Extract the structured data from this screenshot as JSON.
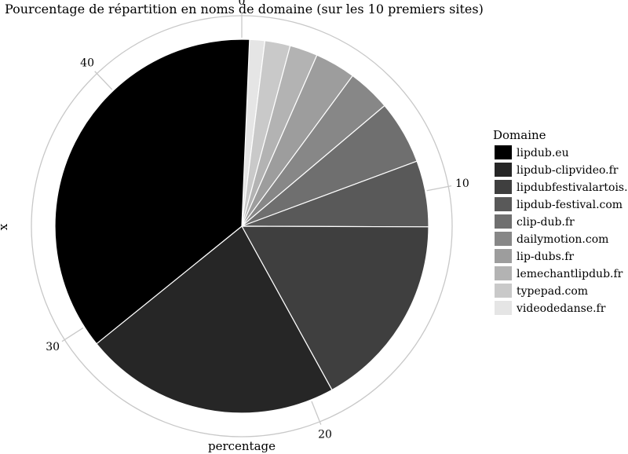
{
  "chart_data": {
    "type": "pie",
    "title": "Pourcentage de répartition en noms de domaine (sur les 10 premiers sites)",
    "xlabel": "percentage",
    "ylabel": "x",
    "theta_ticks": [
      0,
      10,
      20,
      30,
      40
    ],
    "theta_max": 45.5,
    "legend": {
      "title": "Domaine",
      "position": "right"
    },
    "slices": [
      {
        "label": "lipdub.eu",
        "value": 16.6,
        "color": "#000000"
      },
      {
        "label": "lipdub-clipvideo.fr",
        "value": 10.1,
        "color": "#262626"
      },
      {
        "label": "lipdubfestivalartois.fr",
        "value": 7.7,
        "color": "#3f3f3f"
      },
      {
        "label": "lipdub-festival.com",
        "value": 2.6,
        "color": "#595959"
      },
      {
        "label": "clip-dub.fr",
        "value": 2.5,
        "color": "#6f6f6f"
      },
      {
        "label": "dailymotion.com",
        "value": 1.7,
        "color": "#878787"
      },
      {
        "label": "lip-dubs.fr",
        "value": 1.6,
        "color": "#9d9d9d"
      },
      {
        "label": "lemechantlipdub.fr",
        "value": 1.1,
        "color": "#b3b3b3"
      },
      {
        "label": "typepad.com",
        "value": 1.0,
        "color": "#c9c9c9"
      },
      {
        "label": "videodedanse.fr",
        "value": 0.9,
        "color": "#e5e5e5"
      }
    ]
  }
}
